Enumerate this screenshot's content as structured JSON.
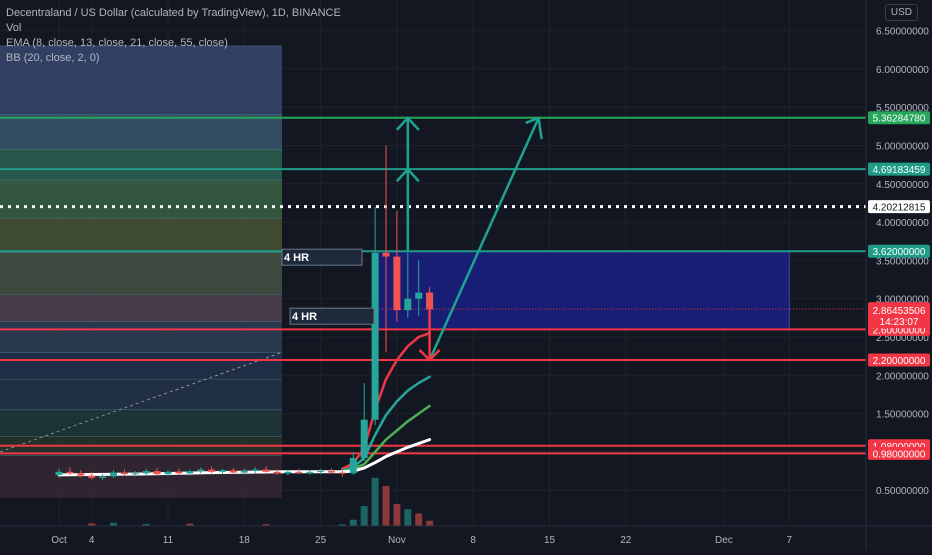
{
  "header": {
    "title": "Decentraland / US Dollar (calculated by TradingView), 1D, BINANCE",
    "indicators": [
      "Vol",
      "EMA (8, close, 13, close, 21, close, 55, close)",
      "BB (20, close, 2, 0)"
    ]
  },
  "currency_button": "USD",
  "chart_data": {
    "type": "candlestick",
    "title": "Decentraland / US Dollar (calculated by TradingView), 1D, BINANCE",
    "y_axis_ticks": [
      "6.50000000",
      "6.00000000",
      "5.50000000",
      "5.00000000",
      "4.50000000",
      "4.00000000",
      "3.50000000",
      "3.00000000",
      "2.50000000",
      "2.00000000",
      "1.50000000",
      "1.00000000",
      "0.50000000"
    ],
    "y_tick_values": [
      6.5,
      6.0,
      5.5,
      5.0,
      4.5,
      4.0,
      3.5,
      3.0,
      2.5,
      2.0,
      1.5,
      1.0,
      0.5
    ],
    "x_axis_ticks": [
      "Oct",
      "4",
      "11",
      "18",
      "25",
      "Nov",
      "8",
      "15",
      "22",
      "Dec",
      "7"
    ],
    "x_tick_dates": [
      "2021-10-01",
      "2021-10-04",
      "2021-10-11",
      "2021-10-18",
      "2021-10-25",
      "2021-11-01",
      "2021-11-08",
      "2021-11-15",
      "2021-11-22",
      "2021-12-01",
      "2021-12-07"
    ],
    "ylim": [
      0.0,
      6.8
    ],
    "horizontal_levels": [
      {
        "label": "5.36284780",
        "value": 5.3628478,
        "color": "#26a65b",
        "style": "solid"
      },
      {
        "label": "4.69183459",
        "value": 4.69183459,
        "color": "#1f9c88",
        "style": "solid"
      },
      {
        "label": "4.20212815",
        "value": 4.20212815,
        "color": "#ffffff",
        "style": "dotted"
      },
      {
        "label": "3.62000000",
        "value": 3.62,
        "color": "#1f9c88",
        "style": "solid"
      },
      {
        "label": "2.60000000",
        "value": 2.6,
        "color": "#f23645",
        "style": "solid"
      },
      {
        "label": "2.20000000",
        "value": 2.2,
        "color": "#f23645",
        "style": "solid"
      },
      {
        "label": "1.08000000",
        "value": 1.08,
        "color": "#f23645",
        "style": "solid"
      },
      {
        "label": "0.98000000",
        "value": 0.98,
        "color": "#f23645",
        "style": "solid"
      }
    ],
    "current_price": {
      "label": "2.86453506",
      "value": 2.86453506,
      "countdown": "14:23:07",
      "color": "#f23645"
    },
    "annotations": [
      {
        "text": "4 HR",
        "value": 3.55
      },
      {
        "text": "4 HR",
        "value": 2.73
      }
    ],
    "zone": {
      "from_date": "2021-10-30",
      "to_date": "2021-12-07",
      "low": 2.6,
      "high": 3.62,
      "color": "#1a1f7a"
    },
    "candles": [
      {
        "date": "2021-10-01",
        "open": 0.7,
        "high": 0.78,
        "low": 0.66,
        "close": 0.74
      },
      {
        "date": "2021-10-02",
        "open": 0.74,
        "high": 0.8,
        "low": 0.7,
        "close": 0.72
      },
      {
        "date": "2021-10-03",
        "open": 0.72,
        "high": 0.76,
        "low": 0.67,
        "close": 0.69
      },
      {
        "date": "2021-10-04",
        "open": 0.69,
        "high": 0.74,
        "low": 0.64,
        "close": 0.66
      },
      {
        "date": "2021-10-05",
        "open": 0.66,
        "high": 0.71,
        "low": 0.63,
        "close": 0.68
      },
      {
        "date": "2021-10-06",
        "open": 0.68,
        "high": 0.76,
        "low": 0.66,
        "close": 0.73
      },
      {
        "date": "2021-10-07",
        "open": 0.73,
        "high": 0.77,
        "low": 0.69,
        "close": 0.71
      },
      {
        "date": "2021-10-08",
        "open": 0.71,
        "high": 0.75,
        "low": 0.68,
        "close": 0.72
      },
      {
        "date": "2021-10-09",
        "open": 0.72,
        "high": 0.78,
        "low": 0.7,
        "close": 0.75
      },
      {
        "date": "2021-10-10",
        "open": 0.75,
        "high": 0.79,
        "low": 0.7,
        "close": 0.71
      },
      {
        "date": "2021-10-11",
        "open": 0.71,
        "high": 0.76,
        "low": 0.68,
        "close": 0.74
      },
      {
        "date": "2021-10-12",
        "open": 0.74,
        "high": 0.78,
        "low": 0.7,
        "close": 0.72
      },
      {
        "date": "2021-10-13",
        "open": 0.72,
        "high": 0.77,
        "low": 0.69,
        "close": 0.75
      },
      {
        "date": "2021-10-14",
        "open": 0.75,
        "high": 0.8,
        "low": 0.72,
        "close": 0.77
      },
      {
        "date": "2021-10-15",
        "open": 0.77,
        "high": 0.81,
        "low": 0.72,
        "close": 0.74
      },
      {
        "date": "2021-10-16",
        "open": 0.74,
        "high": 0.78,
        "low": 0.71,
        "close": 0.76
      },
      {
        "date": "2021-10-17",
        "open": 0.76,
        "high": 0.79,
        "low": 0.72,
        "close": 0.73
      },
      {
        "date": "2021-10-18",
        "open": 0.73,
        "high": 0.78,
        "low": 0.7,
        "close": 0.75
      },
      {
        "date": "2021-10-19",
        "open": 0.75,
        "high": 0.8,
        "low": 0.72,
        "close": 0.77
      },
      {
        "date": "2021-10-20",
        "open": 0.77,
        "high": 0.81,
        "low": 0.73,
        "close": 0.74
      },
      {
        "date": "2021-10-21",
        "open": 0.74,
        "high": 0.77,
        "low": 0.7,
        "close": 0.72
      },
      {
        "date": "2021-10-22",
        "open": 0.72,
        "high": 0.76,
        "low": 0.69,
        "close": 0.74
      },
      {
        "date": "2021-10-23",
        "open": 0.74,
        "high": 0.78,
        "low": 0.71,
        "close": 0.73
      },
      {
        "date": "2021-10-24",
        "open": 0.73,
        "high": 0.76,
        "low": 0.7,
        "close": 0.74
      },
      {
        "date": "2021-10-25",
        "open": 0.74,
        "high": 0.78,
        "low": 0.71,
        "close": 0.75
      },
      {
        "date": "2021-10-26",
        "open": 0.75,
        "high": 0.79,
        "low": 0.72,
        "close": 0.73
      },
      {
        "date": "2021-10-27",
        "open": 0.73,
        "high": 0.76,
        "low": 0.68,
        "close": 0.72
      },
      {
        "date": "2021-10-28",
        "open": 0.72,
        "high": 1.0,
        "low": 0.7,
        "close": 0.92
      },
      {
        "date": "2021-10-29",
        "open": 0.92,
        "high": 1.9,
        "low": 0.88,
        "close": 1.42
      },
      {
        "date": "2021-10-30",
        "open": 1.42,
        "high": 4.2,
        "low": 1.35,
        "close": 3.6
      },
      {
        "date": "2021-10-31",
        "open": 3.6,
        "high": 5.0,
        "low": 2.3,
        "close": 3.55
      },
      {
        "date": "2021-11-01",
        "open": 3.55,
        "high": 4.15,
        "low": 2.7,
        "close": 2.85
      },
      {
        "date": "2021-11-02",
        "open": 2.85,
        "high": 3.6,
        "low": 2.75,
        "close": 3.0
      },
      {
        "date": "2021-11-03",
        "open": 3.0,
        "high": 3.5,
        "low": 2.78,
        "close": 3.08
      },
      {
        "date": "2021-11-04",
        "open": 3.08,
        "high": 3.15,
        "low": 2.7,
        "close": 2.86
      }
    ],
    "ema_series": [
      {
        "period": 8,
        "color": "#f23645",
        "points": [
          [
            "2021-10-27",
            0.78
          ],
          [
            "2021-10-28",
            0.85
          ],
          [
            "2021-10-29",
            1.05
          ],
          [
            "2021-10-30",
            1.55
          ],
          [
            "2021-10-31",
            1.95
          ],
          [
            "2021-11-01",
            2.2
          ],
          [
            "2021-11-02",
            2.38
          ],
          [
            "2021-11-03",
            2.5
          ],
          [
            "2021-11-04",
            2.55
          ]
        ]
      },
      {
        "period": 13,
        "color": "#26a69a",
        "points": [
          [
            "2021-10-27",
            0.76
          ],
          [
            "2021-10-28",
            0.8
          ],
          [
            "2021-10-29",
            0.92
          ],
          [
            "2021-10-30",
            1.22
          ],
          [
            "2021-10-31",
            1.48
          ],
          [
            "2021-11-01",
            1.66
          ],
          [
            "2021-11-02",
            1.8
          ],
          [
            "2021-11-03",
            1.9
          ],
          [
            "2021-11-04",
            1.98
          ]
        ]
      },
      {
        "period": 21,
        "color": "#4caf50",
        "points": [
          [
            "2021-10-27",
            0.75
          ],
          [
            "2021-10-28",
            0.78
          ],
          [
            "2021-10-29",
            0.84
          ],
          [
            "2021-10-30",
            1.0
          ],
          [
            "2021-10-31",
            1.16
          ],
          [
            "2021-11-01",
            1.28
          ],
          [
            "2021-11-02",
            1.4
          ],
          [
            "2021-11-03",
            1.5
          ],
          [
            "2021-11-04",
            1.6
          ]
        ]
      },
      {
        "period": 55,
        "color": "#ffffff",
        "points": [
          [
            "2021-10-01",
            0.7
          ],
          [
            "2021-10-08",
            0.71
          ],
          [
            "2021-10-15",
            0.73
          ],
          [
            "2021-10-22",
            0.74
          ],
          [
            "2021-10-27",
            0.74
          ],
          [
            "2021-10-28",
            0.75
          ],
          [
            "2021-10-29",
            0.79
          ],
          [
            "2021-10-30",
            0.86
          ],
          [
            "2021-10-31",
            0.94
          ],
          [
            "2021-11-01",
            1.0
          ],
          [
            "2021-11-02",
            1.06
          ],
          [
            "2021-11-03",
            1.11
          ],
          [
            "2021-11-04",
            1.16
          ]
        ]
      }
    ],
    "volume": [
      {
        "date": "2021-10-04",
        "v": 0.25,
        "up": false
      },
      {
        "date": "2021-10-06",
        "v": 0.3,
        "up": true
      },
      {
        "date": "2021-10-09",
        "v": 0.2,
        "up": true
      },
      {
        "date": "2021-10-13",
        "v": 0.22,
        "up": false
      },
      {
        "date": "2021-10-20",
        "v": 0.18,
        "up": false
      },
      {
        "date": "2021-10-27",
        "v": 0.15,
        "up": true
      },
      {
        "date": "2021-10-28",
        "v": 0.6,
        "up": true
      },
      {
        "date": "2021-10-29",
        "v": 1.9,
        "up": true
      },
      {
        "date": "2021-10-30",
        "v": 4.6,
        "up": true
      },
      {
        "date": "2021-10-31",
        "v": 3.8,
        "up": false
      },
      {
        "date": "2021-11-01",
        "v": 2.1,
        "up": false
      },
      {
        "date": "2021-11-02",
        "v": 1.6,
        "up": true
      },
      {
        "date": "2021-11-03",
        "v": 1.2,
        "up": false
      },
      {
        "date": "2021-11-04",
        "v": 0.5,
        "up": false
      }
    ]
  }
}
